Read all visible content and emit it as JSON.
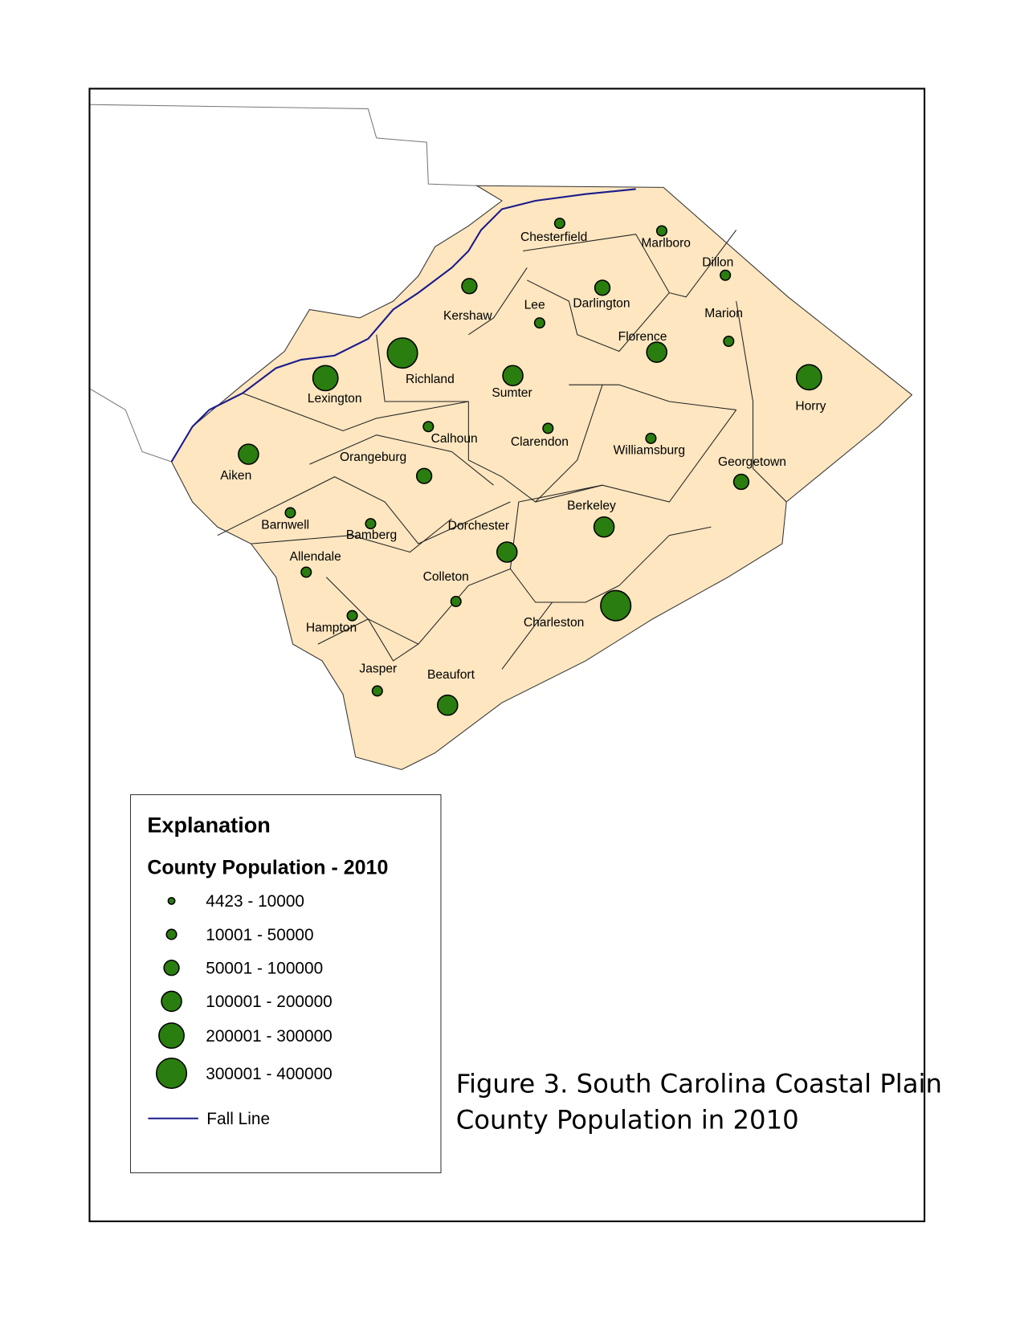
{
  "counties": [
    "Chesterfield",
    "Marlboro",
    "Dillon",
    "Darlington",
    "Lee",
    "Kershaw",
    "Marion",
    "Florence",
    "Richland",
    "Sumter",
    "Lexington",
    "Horry",
    "Calhoun",
    "Clarendon",
    "Williamsburg",
    "Aiken",
    "Orangeburg",
    "Georgetown",
    "Berkeley",
    "Barnwell",
    "Bamberg",
    "Dorchester",
    "Allendale",
    "Colleton",
    "Charleston",
    "Hampton",
    "Jasper",
    "Beaufort"
  ],
  "legend": {
    "title": "Explanation",
    "subtitle": "County Population - 2010",
    "classes": [
      "4423 - 10000",
      "10001 - 50000",
      "50001 - 100000",
      "100001 - 200000",
      "200001 - 300000",
      "300001 - 400000"
    ],
    "fall_line": "Fall Line"
  },
  "caption": [
    "Figure 3. South Carolina Coastal Plain",
    "County Population in 2010"
  ]
}
